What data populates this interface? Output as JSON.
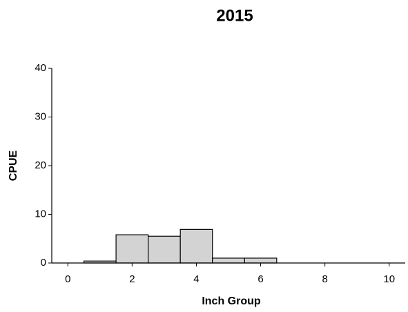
{
  "chart_data": {
    "type": "histogram",
    "title": "2015",
    "x_label": "Inch Group",
    "y_label": "CPUE",
    "bins": [
      0.5,
      1.5,
      2.5,
      3.5,
      4.5,
      5.5,
      6.5
    ],
    "values": [
      0.4,
      5.8,
      5.5,
      6.9,
      1.0,
      1.0
    ],
    "color": "#d3d3d3",
    "xlim": [
      -0.5,
      10.5
    ],
    "xticks": [
      0,
      2,
      4,
      6,
      8,
      10
    ],
    "ylim": [
      0,
      40
    ],
    "yticks": [
      0,
      10,
      20,
      30,
      40
    ],
    "grid": false
  }
}
